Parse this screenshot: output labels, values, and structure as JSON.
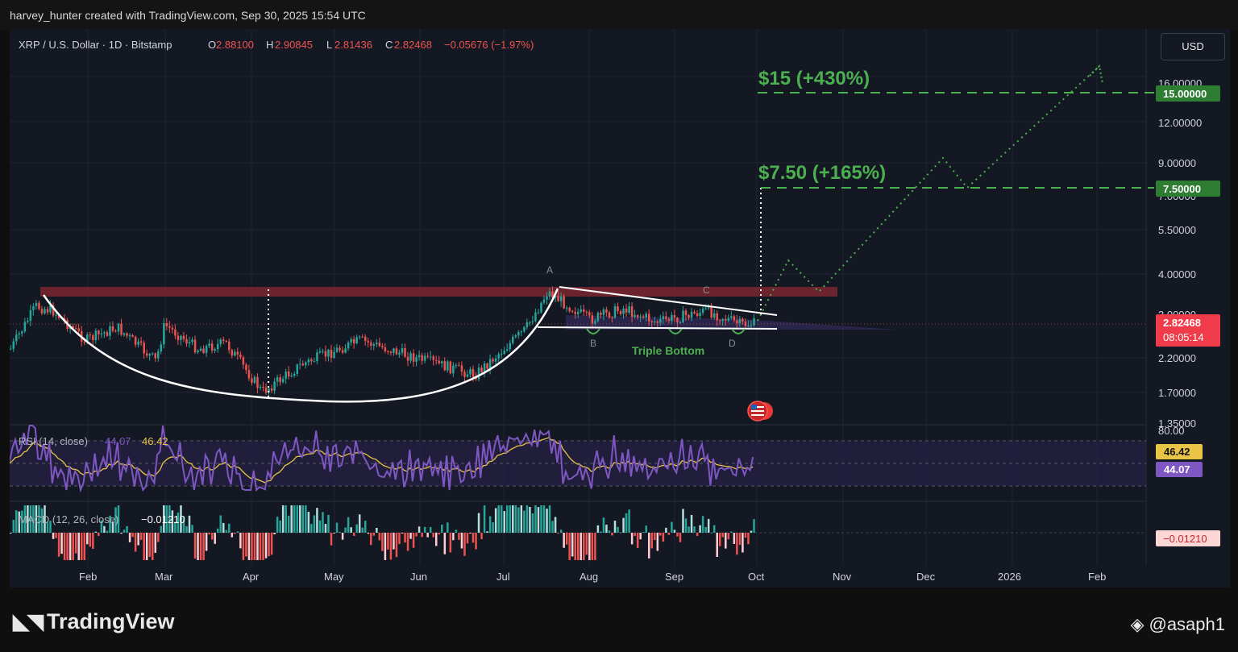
{
  "header": {
    "caption": "harvey_hunter created with TradingView.com, Sep 30, 2025 15:54 UTC"
  },
  "symbol_bar": {
    "name": "XRP / U.S. Dollar · 1D · Bitstamp",
    "o_label": "O",
    "o": "2.88100",
    "h_label": "H",
    "h": "2.90845",
    "l_label": "L",
    "l": "2.81436",
    "c_label": "C",
    "c": "2.82468",
    "change": "−0.05676 (−1.97%)"
  },
  "currency_button": "USD",
  "price_axis": {
    "ticks": [
      "16.00000",
      "12.00000",
      "9.00000",
      "7.00000",
      "5.50000",
      "4.00000",
      "3.00000",
      "2.20000",
      "1.70000",
      "1.35000"
    ],
    "scale": "log",
    "badge_15": "15.00000",
    "badge_750": "7.50000",
    "last_price": "2.82468",
    "countdown": "08:05:14"
  },
  "time_axis": {
    "ticks": [
      "Feb",
      "Mar",
      "Apr",
      "May",
      "Jun",
      "Jul",
      "Aug",
      "Sep",
      "Oct",
      "Nov",
      "Dec",
      "2026",
      "Feb"
    ]
  },
  "annotations": {
    "target_15": "$15 (+430%)",
    "target_750": "$7.50 (+165%)",
    "triple_bottom": "Triple Bottom",
    "point_a": "A",
    "point_b": "B",
    "point_c": "C",
    "point_d": "D"
  },
  "rsi": {
    "label": "RSI (14, close)",
    "value1": "44.07",
    "value2": "46.42",
    "axis_top": "80.00",
    "badge_ma": "46.42",
    "badge_rsi": "44.07"
  },
  "macd": {
    "label": "MACD (12, 26, close)",
    "value": "−0.01210",
    "badge": "−0.01210"
  },
  "footer": {
    "brand": "TradingView",
    "user": "@asaph1"
  },
  "colors": {
    "background": "#141823",
    "up": "#26a69a",
    "down": "#ef5350",
    "target_green": "#4caf50",
    "rsi_line": "#7e57c2",
    "rsi_ma": "#e8c547",
    "resistance_band": "#7a2630"
  },
  "chart_data": {
    "type": "candlestick",
    "x_range": [
      "2025-01-07",
      "2026-02-15"
    ],
    "y_scale": "log",
    "ylim": [
      1.35,
      17
    ],
    "price_path": [
      {
        "date": "2025-01-07",
        "close": 2.35
      },
      {
        "date": "2025-01-16",
        "close": 3.2
      },
      {
        "date": "2025-01-22",
        "close": 3.1
      },
      {
        "date": "2025-02-03",
        "close": 2.5
      },
      {
        "date": "2025-02-14",
        "close": 2.75
      },
      {
        "date": "2025-02-28",
        "close": 2.15
      },
      {
        "date": "2025-03-03",
        "close": 2.8
      },
      {
        "date": "2025-03-15",
        "close": 2.35
      },
      {
        "date": "2025-03-25",
        "close": 2.45
      },
      {
        "date": "2025-04-07",
        "close": 1.72
      },
      {
        "date": "2025-04-21",
        "close": 2.1
      },
      {
        "date": "2025-05-12",
        "close": 2.5
      },
      {
        "date": "2025-06-01",
        "close": 2.2
      },
      {
        "date": "2025-06-22",
        "close": 1.95
      },
      {
        "date": "2025-07-10",
        "close": 2.7
      },
      {
        "date": "2025-07-18",
        "close": 3.55
      },
      {
        "date": "2025-08-02",
        "close": 2.9
      },
      {
        "date": "2025-08-14",
        "close": 3.15
      },
      {
        "date": "2025-08-26",
        "close": 2.85
      },
      {
        "date": "2025-09-13",
        "close": 3.1
      },
      {
        "date": "2025-09-25",
        "close": 2.8
      },
      {
        "date": "2025-09-30",
        "close": 2.82468
      }
    ],
    "projection": [
      {
        "date": "2025-09-30",
        "price": 2.82
      },
      {
        "date": "2025-10-12",
        "price": 4.5
      },
      {
        "date": "2025-10-24",
        "price": 3.75
      },
      {
        "date": "2025-12-05",
        "price": 9.4
      },
      {
        "date": "2025-12-16",
        "price": 7.5
      },
      {
        "date": "2026-02-01",
        "price": 17
      }
    ],
    "levels": {
      "resistance": 3.5,
      "support": 2.7,
      "target1": 7.5,
      "target2": 15
    },
    "rsi": {
      "last": 44.07,
      "ma": 46.42,
      "bands": [
        70,
        50,
        30
      ]
    },
    "macd": {
      "last": -0.0121
    }
  }
}
